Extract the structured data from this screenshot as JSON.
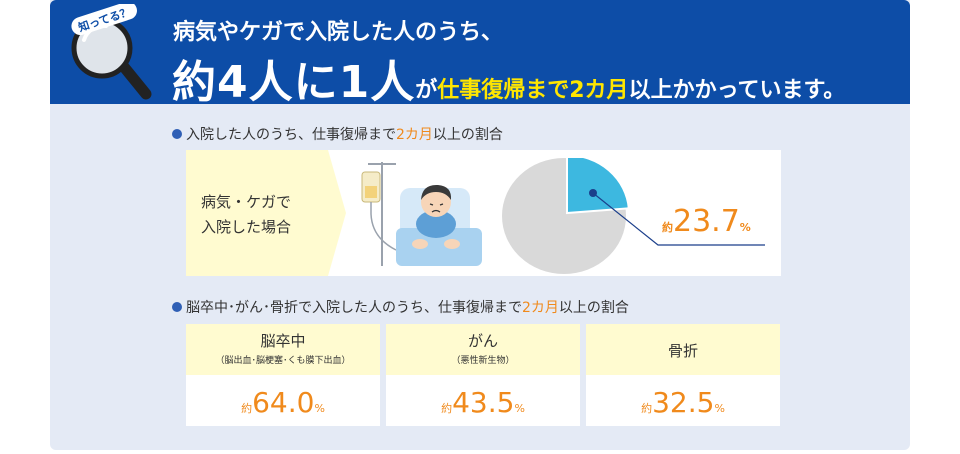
{
  "header": {
    "badge": "知ってる？",
    "line1": "病気やケガで入院した人のうち、",
    "line2_big": "約4人に1人",
    "line2_ga": "が",
    "line2_yellow": "仕事復帰まで2カ月",
    "line2_rest": "以上かかっています。"
  },
  "section1": {
    "title_pre": "入院した人のうち、仕事復帰まで",
    "title_highlight": "2カ月",
    "title_post": "以上の割合",
    "case_line1": "病気・ケガで",
    "case_line2": "入院した場合",
    "value_prefix": "約",
    "value": "23.7",
    "value_unit": "%",
    "fraction": 0.237
  },
  "section2": {
    "title_pre": "脳卒中･がん･骨折で入院した人のうち、仕事復帰まで",
    "title_highlight": "2カ月",
    "title_post": "以上の割合",
    "items": [
      {
        "name": "脳卒中",
        "sub": "（脳出血･脳梗塞･くも膜下出血）",
        "prefix": "約",
        "value": "64.0",
        "unit": "%"
      },
      {
        "name": "がん",
        "sub": "（悪性新生物）",
        "prefix": "約",
        "value": "43.5",
        "unit": "%"
      },
      {
        "name": "骨折",
        "sub": "",
        "prefix": "約",
        "value": "32.5",
        "unit": "%"
      }
    ]
  },
  "colors": {
    "header_blue": "#0d4da7",
    "accent_orange": "#f08a1c",
    "pie_blue": "#3db8e0",
    "pie_gray": "#d9d9d9",
    "card_bg": "#e4eaf5",
    "yellow_bg": "#fffbd0"
  }
}
